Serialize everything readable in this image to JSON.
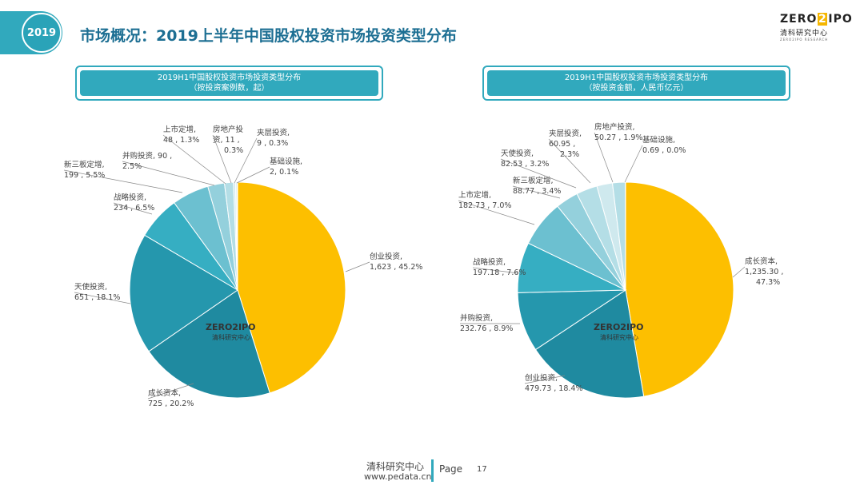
{
  "header": {
    "year": "2019",
    "title": "市场概况：2019上半年中国股权投资市场投资类型分布"
  },
  "logo": {
    "text_left": "ZERO",
    "text_mid": "2",
    "text_right": "IPO",
    "sub": "清科研究中心",
    "tiny": "ZERO2IPO RESEARCH"
  },
  "watermark": {
    "main": "ZERO2IPO",
    "sub": "清科研究中心"
  },
  "colors": {
    "accent": "#31a9bd",
    "gold": "#fdbf00"
  },
  "chart_data": [
    {
      "type": "pie",
      "title": "2019H1中国股权投资市场投资类型分布",
      "subtitle": "（按投资案例数，起）",
      "slices": [
        {
          "label_top": "创业投资,",
          "label_bottom": "1,623 , 45.2%",
          "value": 1623,
          "percent": 45.2,
          "color": "#fdbf00"
        },
        {
          "label_top": "成长资本,",
          "label_bottom": "725 , 20.2%",
          "value": 725,
          "percent": 20.2,
          "color": "#1f8aa0"
        },
        {
          "label_top": "天使投资,",
          "label_bottom": "651 , 18.1%",
          "value": 651,
          "percent": 18.1,
          "color": "#2597ad"
        },
        {
          "label_top": "战略投资,",
          "label_bottom": "234 , 6.5%",
          "value": 234,
          "percent": 6.5,
          "color": "#36aec2"
        },
        {
          "label_top": "新三板定增,",
          "label_bottom": "199 , 5.5%",
          "value": 199,
          "percent": 5.5,
          "color": "#6cc0d0"
        },
        {
          "label_top": "并购投资,  90 ,",
          "label_bottom": "2.5%",
          "value": 90,
          "percent": 2.5,
          "color": "#94d0dc"
        },
        {
          "label_top": "上市定增,",
          "label_bottom": "48 , 1.3%",
          "value": 48,
          "percent": 1.3,
          "color": "#b4dee6"
        },
        {
          "label_top": "房地产投",
          "label_bottom": "资,  11 ,",
          "label_third": "0.3%",
          "value": 11,
          "percent": 0.3,
          "color": "#cfe9ee"
        },
        {
          "label_top": "夹层投资,",
          "label_bottom": "9 , 0.3%",
          "value": 9,
          "percent": 0.3,
          "color": "#e0f1f4"
        },
        {
          "label_top": "基础设施,",
          "label_bottom": "2, 0.1%",
          "value": 2,
          "percent": 0.1,
          "color": "#eef8fa"
        }
      ]
    },
    {
      "type": "pie",
      "title": "2019H1中国股权投资市场投资类型分布",
      "subtitle": "（按投资金额，人民币亿元）",
      "slices": [
        {
          "label_top": "成长资本,",
          "label_bottom": "1,235.30 ,",
          "label_third": "47.3%",
          "value": 1235.3,
          "percent": 47.3,
          "color": "#fdbf00"
        },
        {
          "label_top": "创业投资,",
          "label_bottom": "479.73 , 18.4%",
          "value": 479.73,
          "percent": 18.4,
          "color": "#1f8aa0"
        },
        {
          "label_top": "并购投资,",
          "label_bottom": "232.76 , 8.9%",
          "value": 232.76,
          "percent": 8.9,
          "color": "#2597ad"
        },
        {
          "label_top": "战略投资,",
          "label_bottom": "197.18 , 7.6%",
          "value": 197.18,
          "percent": 7.6,
          "color": "#36aec2"
        },
        {
          "label_top": "上市定增,",
          "label_bottom": "182.73 , 7.0%",
          "value": 182.73,
          "percent": 7.0,
          "color": "#6cc0d0"
        },
        {
          "label_top": "新三板定增,",
          "label_bottom": "88.77 , 3.4%",
          "value": 88.77,
          "percent": 3.4,
          "color": "#94d0dc"
        },
        {
          "label_top": "天使投资,",
          "label_bottom": "82.53 , 3.2%",
          "value": 82.53,
          "percent": 3.2,
          "color": "#b4dee6"
        },
        {
          "label_top": "夹层投资,",
          "label_bottom": "60.95 ,",
          "label_third": "2.3%",
          "value": 60.95,
          "percent": 2.3,
          "color": "#cfe9ee"
        },
        {
          "label_top": "房地产投资,",
          "label_bottom": "50.27 , 1.9%",
          "value": 50.27,
          "percent": 1.9,
          "color": "#b4dee6"
        },
        {
          "label_top": "基础设施,",
          "label_bottom": "0.69 , 0.0%",
          "value": 0.69,
          "percent": 0.0,
          "color": "#eef8fa"
        }
      ]
    }
  ],
  "footer": {
    "org": "清科研究中心",
    "url": "www.pedata.cn",
    "page_label": "Page",
    "page_number": "17"
  }
}
